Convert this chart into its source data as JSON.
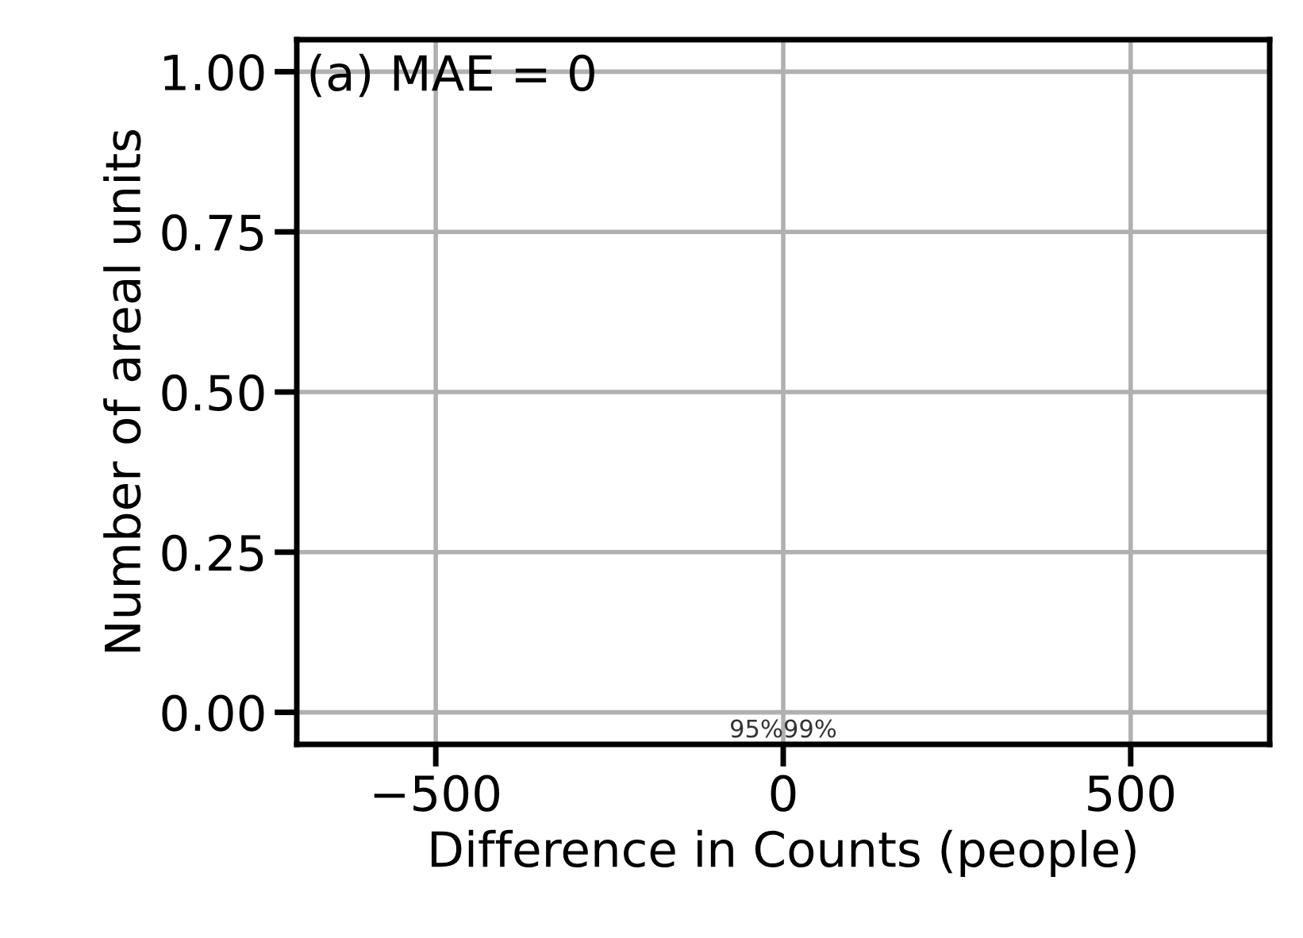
{
  "chart_data": {
    "type": "histogram",
    "xlabel": "Difference in Counts (people)",
    "ylabel": "Number of areal units",
    "annotations": [
      "(a) MAE = 0",
      "95%",
      "99%"
    ],
    "xlim": [
      -700,
      700
    ],
    "ylim": [
      -0.05,
      1.05
    ],
    "xticks": [
      {
        "value": -500,
        "label": "−500"
      },
      0,
      500
    ],
    "yticks": [
      {
        "value": 0,
        "label": "0.00"
      },
      {
        "value": 0.25,
        "label": "0.25"
      },
      {
        "value": 0.5,
        "label": "0.50"
      },
      {
        "value": 0.75,
        "label": "0.75"
      },
      {
        "value": 1,
        "label": "1.00"
      }
    ],
    "grid": true
  }
}
